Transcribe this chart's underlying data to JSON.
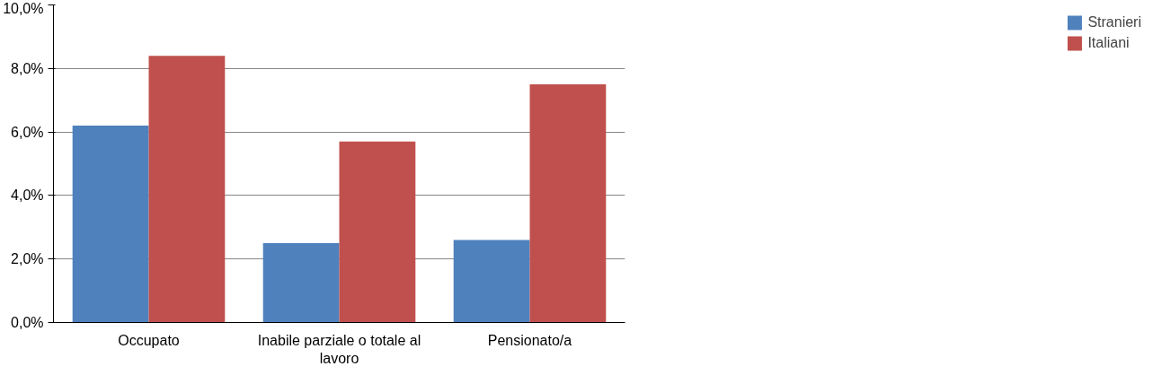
{
  "chart_data": {
    "type": "bar",
    "categories": [
      "Occupato",
      "Inabile parziale o totale al lavoro",
      "Pensionato/a"
    ],
    "series": [
      {
        "name": "Stranieri",
        "color": "#4f81bd",
        "values": [
          6.2,
          2.5,
          2.6
        ]
      },
      {
        "name": "Italiani",
        "color": "#c0504d",
        "values": [
          8.4,
          5.7,
          7.5
        ]
      }
    ],
    "ylim": [
      0,
      10
    ],
    "yticks": [
      {
        "value": 0,
        "label": "0,0%"
      },
      {
        "value": 2,
        "label": "2,0%"
      },
      {
        "value": 4,
        "label": "4,0%"
      },
      {
        "value": 6,
        "label": "6,0%"
      },
      {
        "value": 8,
        "label": "8,0%"
      },
      {
        "value": 10,
        "label": "10,0%"
      }
    ],
    "grid": "y",
    "legend": "right"
  }
}
